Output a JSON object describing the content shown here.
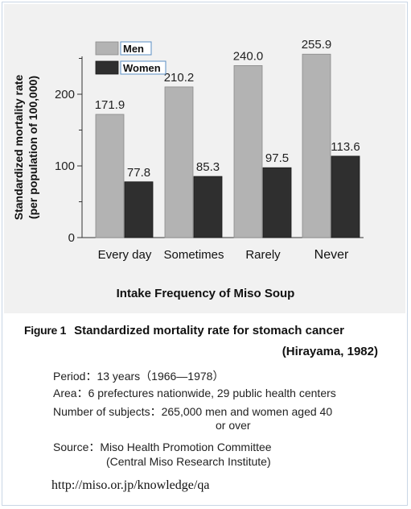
{
  "chart_data": {
    "type": "bar",
    "categories": [
      "Every day",
      "Sometimes",
      "Rarely",
      "Never"
    ],
    "series": [
      {
        "name": "Men",
        "values": [
          171.9,
          210.2,
          240.0,
          255.9
        ],
        "color": "#b3b3b3"
      },
      {
        "name": "Women",
        "values": [
          77.8,
          85.3,
          97.5,
          113.6
        ],
        "color": "#2f2f2f"
      }
    ],
    "value_labels": [
      [
        "171.9",
        "210.2",
        "240.0",
        "255.9"
      ],
      [
        "77.8",
        "85.3",
        "97.5",
        "113.6"
      ]
    ],
    "ylabel_line1": "Standardized mortality rate",
    "ylabel_line2": "(per population of 100,000)",
    "xlabel": "Intake Frequency of Miso Soup",
    "y_ticks": [
      0,
      100,
      200
    ],
    "ylim": [
      0,
      270
    ],
    "grid": false,
    "legend_position": "top-left"
  },
  "figure": {
    "label": "Figure 1",
    "caption": "Standardized mortality rate for stomach cancer",
    "citation": "(Hirayama, 1982)"
  },
  "info": {
    "period": "Period：13 years（1966—1978）",
    "area": "Area：6 prefectures nationwide, 29 public health centers",
    "subjects_line1": "Number of subjects：265,000 men and women aged 40",
    "subjects_line2": "or over",
    "source_line1": "Source：Miso Health Promotion Committee",
    "source_line2": "(Central Miso Research Institute)"
  },
  "url": "http://miso.or.jp/knowledge/qa",
  "colors": {
    "panel_background": "#f1f1f1",
    "men_bar": "#b3b3b3",
    "women_bar": "#2f2f2f",
    "legend_label_border": "#5a8fc4"
  }
}
